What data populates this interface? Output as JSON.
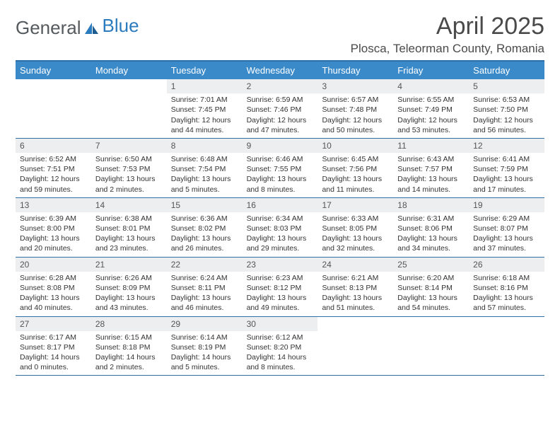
{
  "logo": {
    "part1": "General",
    "part2": "Blue"
  },
  "header": {
    "month": "April 2025",
    "location": "Plosca, Teleorman County, Romania"
  },
  "colors": {
    "header_bg": "#3a8aca",
    "header_text": "#ffffff",
    "rule": "#2f6fa8",
    "daynum_bg": "#eceeef",
    "logo_gray": "#555a5e",
    "logo_blue": "#2b7bbf"
  },
  "dayNames": [
    "Sunday",
    "Monday",
    "Tuesday",
    "Wednesday",
    "Thursday",
    "Friday",
    "Saturday"
  ],
  "weeks": [
    [
      {
        "empty": true
      },
      {
        "empty": true
      },
      {
        "num": "1",
        "sunrise": "7:01 AM",
        "sunset": "7:45 PM",
        "day_h": "12",
        "day_m": "44"
      },
      {
        "num": "2",
        "sunrise": "6:59 AM",
        "sunset": "7:46 PM",
        "day_h": "12",
        "day_m": "47"
      },
      {
        "num": "3",
        "sunrise": "6:57 AM",
        "sunset": "7:48 PM",
        "day_h": "12",
        "day_m": "50"
      },
      {
        "num": "4",
        "sunrise": "6:55 AM",
        "sunset": "7:49 PM",
        "day_h": "12",
        "day_m": "53"
      },
      {
        "num": "5",
        "sunrise": "6:53 AM",
        "sunset": "7:50 PM",
        "day_h": "12",
        "day_m": "56"
      }
    ],
    [
      {
        "num": "6",
        "sunrise": "6:52 AM",
        "sunset": "7:51 PM",
        "day_h": "12",
        "day_m": "59"
      },
      {
        "num": "7",
        "sunrise": "6:50 AM",
        "sunset": "7:53 PM",
        "day_h": "13",
        "day_m": "2"
      },
      {
        "num": "8",
        "sunrise": "6:48 AM",
        "sunset": "7:54 PM",
        "day_h": "13",
        "day_m": "5"
      },
      {
        "num": "9",
        "sunrise": "6:46 AM",
        "sunset": "7:55 PM",
        "day_h": "13",
        "day_m": "8"
      },
      {
        "num": "10",
        "sunrise": "6:45 AM",
        "sunset": "7:56 PM",
        "day_h": "13",
        "day_m": "11"
      },
      {
        "num": "11",
        "sunrise": "6:43 AM",
        "sunset": "7:57 PM",
        "day_h": "13",
        "day_m": "14"
      },
      {
        "num": "12",
        "sunrise": "6:41 AM",
        "sunset": "7:59 PM",
        "day_h": "13",
        "day_m": "17"
      }
    ],
    [
      {
        "num": "13",
        "sunrise": "6:39 AM",
        "sunset": "8:00 PM",
        "day_h": "13",
        "day_m": "20"
      },
      {
        "num": "14",
        "sunrise": "6:38 AM",
        "sunset": "8:01 PM",
        "day_h": "13",
        "day_m": "23"
      },
      {
        "num": "15",
        "sunrise": "6:36 AM",
        "sunset": "8:02 PM",
        "day_h": "13",
        "day_m": "26"
      },
      {
        "num": "16",
        "sunrise": "6:34 AM",
        "sunset": "8:03 PM",
        "day_h": "13",
        "day_m": "29"
      },
      {
        "num": "17",
        "sunrise": "6:33 AM",
        "sunset": "8:05 PM",
        "day_h": "13",
        "day_m": "32"
      },
      {
        "num": "18",
        "sunrise": "6:31 AM",
        "sunset": "8:06 PM",
        "day_h": "13",
        "day_m": "34"
      },
      {
        "num": "19",
        "sunrise": "6:29 AM",
        "sunset": "8:07 PM",
        "day_h": "13",
        "day_m": "37"
      }
    ],
    [
      {
        "num": "20",
        "sunrise": "6:28 AM",
        "sunset": "8:08 PM",
        "day_h": "13",
        "day_m": "40"
      },
      {
        "num": "21",
        "sunrise": "6:26 AM",
        "sunset": "8:09 PM",
        "day_h": "13",
        "day_m": "43"
      },
      {
        "num": "22",
        "sunrise": "6:24 AM",
        "sunset": "8:11 PM",
        "day_h": "13",
        "day_m": "46"
      },
      {
        "num": "23",
        "sunrise": "6:23 AM",
        "sunset": "8:12 PM",
        "day_h": "13",
        "day_m": "49"
      },
      {
        "num": "24",
        "sunrise": "6:21 AM",
        "sunset": "8:13 PM",
        "day_h": "13",
        "day_m": "51"
      },
      {
        "num": "25",
        "sunrise": "6:20 AM",
        "sunset": "8:14 PM",
        "day_h": "13",
        "day_m": "54"
      },
      {
        "num": "26",
        "sunrise": "6:18 AM",
        "sunset": "8:16 PM",
        "day_h": "13",
        "day_m": "57"
      }
    ],
    [
      {
        "num": "27",
        "sunrise": "6:17 AM",
        "sunset": "8:17 PM",
        "day_h": "14",
        "day_m": "0"
      },
      {
        "num": "28",
        "sunrise": "6:15 AM",
        "sunset": "8:18 PM",
        "day_h": "14",
        "day_m": "2"
      },
      {
        "num": "29",
        "sunrise": "6:14 AM",
        "sunset": "8:19 PM",
        "day_h": "14",
        "day_m": "5"
      },
      {
        "num": "30",
        "sunrise": "6:12 AM",
        "sunset": "8:20 PM",
        "day_h": "14",
        "day_m": "8"
      },
      {
        "empty": true
      },
      {
        "empty": true
      },
      {
        "empty": true
      }
    ]
  ]
}
